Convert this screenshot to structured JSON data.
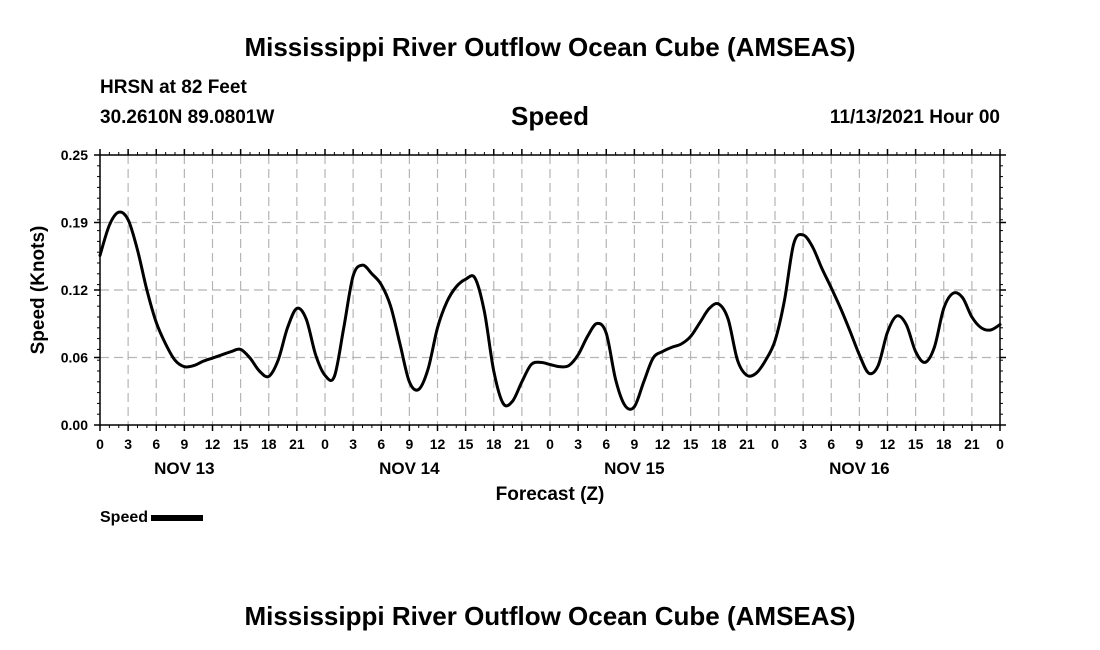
{
  "page_title_top": "Mississippi River Outflow Ocean Cube (AMSEAS)",
  "page_title_bottom": "Mississippi River Outflow Ocean Cube (AMSEAS)",
  "header": {
    "station": "HRSN at 82 Feet",
    "coords": "30.2610N  89.0801W",
    "variable": "Speed",
    "datetime": "11/13/2021 Hour 00"
  },
  "chart_data": {
    "type": "line",
    "title": "Speed",
    "xlabel": "Forecast (Z)",
    "ylabel": "Speed (Knots)",
    "ylim": [
      0,
      0.25
    ],
    "y_ticks": [
      "0.00",
      "0.06",
      "0.12",
      "0.19",
      "0.25"
    ],
    "y_tick_values": [
      0,
      0.0625,
      0.125,
      0.1875,
      0.25
    ],
    "xlim_hours": [
      0,
      96
    ],
    "x_tick_labels": [
      "0",
      "3",
      "6",
      "9",
      "12",
      "15",
      "18",
      "21",
      "0",
      "3",
      "6",
      "9",
      "12",
      "15",
      "18",
      "21",
      "0",
      "3",
      "6",
      "9",
      "12",
      "15",
      "18",
      "21",
      "0",
      "3",
      "6",
      "9",
      "12",
      "15",
      "18",
      "21",
      "0"
    ],
    "day_labels": [
      {
        "label": "NOV 13",
        "hour": 9
      },
      {
        "label": "NOV 14",
        "hour": 33
      },
      {
        "label": "NOV 15",
        "hour": 57
      },
      {
        "label": "NOV 16",
        "hour": 81
      }
    ],
    "grid": true,
    "series": [
      {
        "name": "Speed",
        "color": "#000000",
        "x": [
          0,
          1,
          2,
          3,
          4,
          5,
          6,
          7,
          8,
          9,
          10,
          11,
          12,
          13,
          14,
          15,
          16,
          17,
          18,
          19,
          20,
          21,
          22,
          23,
          24,
          25,
          26,
          27,
          28,
          29,
          30,
          31,
          32,
          33,
          34,
          35,
          36,
          37,
          38,
          39,
          40,
          41,
          42,
          43,
          44,
          45,
          46,
          47,
          48,
          49,
          50,
          51,
          52,
          53,
          54,
          55,
          56,
          57,
          58,
          59,
          60,
          61,
          62,
          63,
          64,
          65,
          66,
          67,
          68,
          69,
          70,
          71,
          72,
          73,
          74,
          75,
          76,
          77,
          78,
          79,
          80,
          81,
          82,
          83,
          84,
          85,
          86,
          87,
          88,
          89,
          90,
          91,
          92,
          93,
          94,
          95,
          96
        ],
        "values": [
          0.157,
          0.185,
          0.197,
          0.19,
          0.162,
          0.125,
          0.095,
          0.075,
          0.06,
          0.054,
          0.055,
          0.059,
          0.062,
          0.065,
          0.068,
          0.07,
          0.062,
          0.05,
          0.045,
          0.06,
          0.09,
          0.108,
          0.098,
          0.065,
          0.046,
          0.045,
          0.09,
          0.138,
          0.148,
          0.14,
          0.13,
          0.11,
          0.075,
          0.04,
          0.033,
          0.052,
          0.09,
          0.114,
          0.128,
          0.135,
          0.136,
          0.105,
          0.05,
          0.02,
          0.022,
          0.04,
          0.056,
          0.058,
          0.056,
          0.054,
          0.055,
          0.065,
          0.082,
          0.094,
          0.085,
          0.042,
          0.018,
          0.017,
          0.04,
          0.062,
          0.068,
          0.072,
          0.075,
          0.082,
          0.095,
          0.108,
          0.112,
          0.098,
          0.06,
          0.046,
          0.048,
          0.06,
          0.078,
          0.115,
          0.168,
          0.176,
          0.165,
          0.145,
          0.127,
          0.108,
          0.087,
          0.065,
          0.048,
          0.055,
          0.086,
          0.101,
          0.093,
          0.068,
          0.058,
          0.072,
          0.108,
          0.122,
          0.118,
          0.1,
          0.09,
          0.088,
          0.093
        ]
      }
    ]
  },
  "legend": {
    "label": "Speed"
  }
}
